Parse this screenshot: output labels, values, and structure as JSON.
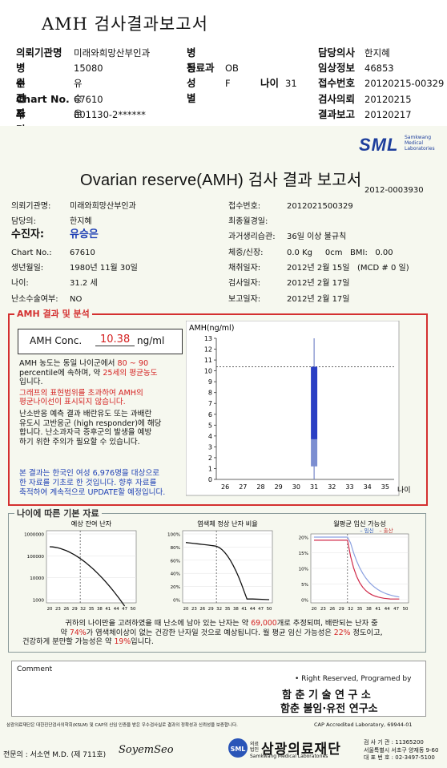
{
  "header": {
    "title": "AMH 검사결과보고서",
    "col1": [
      {
        "key": "의뢰기관명",
        "value": "미래와희망산부인과"
      },
      {
        "key": "병원코드",
        "value": "15080"
      },
      {
        "key": "수진자",
        "value": "유승은"
      },
      {
        "key": "Chart No.",
        "value": "67610"
      },
      {
        "key": "주민번호",
        "value": "801130-2******"
      }
    ],
    "col2": [
      {
        "key": "병동",
        "value": ""
      },
      {
        "key": "진료과",
        "value": "OB"
      },
      {
        "key": "성별",
        "value": "F"
      }
    ],
    "age": {
      "key": "나이",
      "value": "31"
    },
    "col3": [
      {
        "key": "담당의사",
        "value": "한지혜"
      },
      {
        "key": "임상정보",
        "value": "46853"
      },
      {
        "key": "접수번호",
        "value": "20120215-00329"
      },
      {
        "key": "검사의뢰",
        "value": "20120215"
      },
      {
        "key": "결과보고",
        "value": "20120217"
      }
    ]
  },
  "logo": {
    "text": "SML",
    "sub": "Samkwang Medical Laboratories"
  },
  "report": {
    "title": "Ovarian reserve(AMH) 검사 결과 보고서",
    "doc_no": "2012-0003930",
    "left": [
      {
        "key": "의뢰기관명:",
        "value": "미래와희망산부인과"
      },
      {
        "key": "담당의:",
        "value": "한지혜"
      },
      {
        "key": "수진자:",
        "value": "유승은"
      },
      {
        "key": "Chart No.:",
        "value": "67610"
      },
      {
        "key": "생년월일:",
        "value": "1980년 11월 30일"
      },
      {
        "key": "나이:",
        "value": "31.2 세"
      },
      {
        "key": "난소수술여부:",
        "value": "NO"
      }
    ],
    "right": [
      {
        "key": "접수번호:",
        "value": "2012021500329"
      },
      {
        "key": "최종월경일:",
        "value": ""
      },
      {
        "key": "과거생리습관:",
        "value": "36일 이상 불규칙"
      },
      {
        "key": "체중/신장:",
        "value": "0.0 Kg     0cm   BMI:   0.00"
      },
      {
        "key": "채취일자:",
        "value": "2012년 2월 15일   (MCD # 0 일)"
      },
      {
        "key": "검사일자:",
        "value": "2012년 2월 17일"
      },
      {
        "key": "보고일자:",
        "value": "2012년 2월 17일"
      }
    ]
  },
  "amh_section": {
    "label": "AMH 결과 및 분석",
    "conc_label": "AMH Conc.",
    "conc_value": "10.38",
    "conc_unit": "ng/ml",
    "p1_a": "AMH 농도는 동일 나이군에서",
    "p1_b": "80 ~ 90",
    "p1_c": "percentile에 속하며, 약",
    "p1_d": "25세의 평균농도",
    "p1_e": "입니다.",
    "p2_a": "그래프의 표현범위를 초과하여 AMH의",
    "p2_b": "평균나이선이 표시되지 않습니다.",
    "p3_a": "난소반응 예측 결과 배란유도 또는 과배란",
    "p3_b": "유도시 고반응군 (high responder)에 해당",
    "p3_c": "합니다. 난소과자극 증후군의 발생을 예방",
    "p3_d": "하기 위한 주의가 필요할 수 있습니다.",
    "p4_a": "본 결과는 한국인 여성 6,976명을 대상으로",
    "p4_b": "한 자료를 기초로 한 것입니다. 향후 자료를",
    "p4_c": "축적하여 계속적으로 UPDATE할 예정입니다."
  },
  "chart_data": [
    {
      "type": "bar",
      "ylabel": "AMH(ng/ml)",
      "xlabel": "나이",
      "x": [
        26,
        27,
        28,
        29,
        30,
        31,
        32,
        33,
        34,
        35
      ],
      "ylim": [
        0,
        13
      ],
      "yticks": [
        0,
        1,
        2,
        3,
        4,
        5,
        6,
        7,
        8,
        9,
        10,
        11,
        12,
        13
      ],
      "patient": {
        "age": 31,
        "value": 10.38
      },
      "reference_band": [
        1.2,
        3.7
      ],
      "reference_line": 10.38
    },
    {
      "type": "line",
      "title": "예상 잔여 난자",
      "x_ticks": [
        20,
        23,
        26,
        29,
        32,
        35,
        38,
        41,
        44,
        47,
        50
      ],
      "y_ticks": [
        "1000000",
        "100000",
        "10000",
        "1000"
      ],
      "y_scale": "log",
      "marker_age": 31
    },
    {
      "type": "line",
      "title": "염색체 정상 난자 비율",
      "x_ticks": [
        20,
        23,
        26,
        29,
        32,
        35,
        38,
        41,
        44,
        47,
        50
      ],
      "y_ticks": [
        "100%",
        "80%",
        "60%",
        "40%",
        "20%",
        "0%"
      ],
      "marker_age": 31
    },
    {
      "type": "line",
      "title": "월평균 임신 가능성",
      "legend": [
        "임신",
        "출산"
      ],
      "x_ticks": [
        20,
        23,
        26,
        29,
        32,
        35,
        38,
        41,
        44,
        47,
        50
      ],
      "y_ticks": [
        "20%",
        "15%",
        "10%",
        "5%",
        "0%"
      ],
      "marker_age": 31
    }
  ],
  "age_section": {
    "label": "나이에 따른 기본 자료",
    "s1_a": "귀하의 나이만을 고려하였을 때 난소에 남아 있는 난자는 약",
    "s1_b": "69,000",
    "s1_c": "개로 추정되며, 배란되는 난자 중",
    "s2_a": "약",
    "s2_b": "74%",
    "s2_c": "가 염색체이상이 없는 건강한 난자일 것으로 예상됩니다. 월 평균 임신 가능성은",
    "s2_d": "22%",
    "s2_e": "정도이고,",
    "s3_a": "건강하게 분만할 가능성은 약",
    "s3_b": "19%",
    "s3_c": "입니다."
  },
  "comment": {
    "label": "Comment"
  },
  "signature": {
    "rights": "• Right Reserved, Programed by",
    "org1": "함 춘  기 술  연 구 소",
    "org2": "함춘 불임·유전 연구소"
  },
  "footer": {
    "note": "삼광의료재단은 대한진단검사의학회(KSLM) 및 CAP의 신임 인증을 받은 우수검사실로 결과의 정확성과 신뢰성을 보증합니다.",
    "cap": "CAP  Accredited  Laboratory,  69944-01",
    "specialist": "전문의 : 서소연 M.D. (제 711호)",
    "sign": "SoyemSeo",
    "foundation_prefix": "의료법인",
    "foundation": "삼광의료재단",
    "foundation_en": "Samkwang Medical Laboratories",
    "contact": [
      "검 사 기 관 : 11365200",
      "서울특별시 서초구 양재동 9-60",
      "대 표 번 호 : 02-3497-5100"
    ]
  }
}
